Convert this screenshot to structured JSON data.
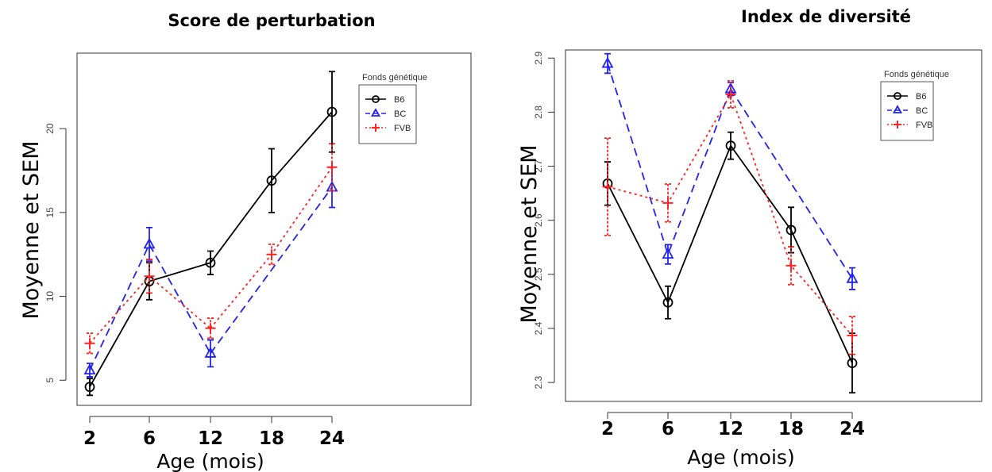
{
  "chart_data": [
    {
      "type": "line",
      "title": "Score de perturbation",
      "xlabel": "Age (mois)",
      "ylabel": "Moyenne et SEM",
      "x": [
        2,
        6,
        12,
        18,
        24
      ],
      "x_tick_labels": [
        "2",
        "6",
        "12",
        "18",
        "24"
      ],
      "y_ticks": [
        5,
        10,
        15,
        20
      ],
      "ylim": [
        3.5,
        24.5
      ],
      "grid": false,
      "legend": {
        "title": "Fonds génétique",
        "placement": "top-right"
      },
      "series": [
        {
          "name": "B6",
          "color": "#000000",
          "marker": "circle",
          "dash": "solid",
          "values": [
            4.6,
            10.9,
            12.0,
            16.9,
            21.0
          ],
          "sem": [
            0.5,
            1.1,
            0.7,
            1.9,
            2.4
          ],
          "segments": [
            [
              0,
              2
            ],
            [
              2,
              4
            ]
          ]
        },
        {
          "name": "BC",
          "color": "#2222ee",
          "marker": "triangle",
          "dash": "dashed",
          "values": [
            5.6,
            13.1,
            6.6,
            null,
            16.5
          ],
          "sem": [
            0.4,
            1.0,
            0.8,
            null,
            1.2
          ],
          "segments": [
            [
              0,
              2
            ],
            [
              2,
              4
            ]
          ]
        },
        {
          "name": "FVB",
          "color": "#ff2222",
          "marker": "plus",
          "dash": "dotted",
          "values": [
            7.2,
            11.2,
            8.1,
            12.5,
            17.7
          ],
          "sem": [
            0.6,
            1.0,
            0.6,
            0.6,
            1.4
          ],
          "segments": [
            [
              0,
              2
            ],
            [
              2,
              4
            ]
          ]
        }
      ]
    },
    {
      "type": "line",
      "title": "Index de diversité",
      "xlabel": "Age (mois)",
      "ylabel": "Moyenne et SEM",
      "x": [
        2,
        6,
        12,
        18,
        24
      ],
      "x_tick_labels": [
        "2",
        "6",
        "12",
        "18",
        "24"
      ],
      "y_ticks": [
        2.3,
        2.4,
        2.5,
        2.6,
        2.7,
        2.8,
        2.9
      ],
      "ylim": [
        2.265,
        2.915
      ],
      "grid": false,
      "legend": {
        "title": "Fonds génétique",
        "placement": "top-right"
      },
      "series": [
        {
          "name": "B6",
          "color": "#000000",
          "marker": "circle",
          "dash": "solid",
          "values": [
            2.668,
            2.448,
            2.738,
            2.582,
            2.336
          ],
          "sem": [
            0.04,
            0.03,
            0.025,
            0.042,
            0.055
          ],
          "segments": [
            [
              0,
              4
            ]
          ]
        },
        {
          "name": "BC",
          "color": "#2222ee",
          "marker": "triangle",
          "dash": "dashed",
          "values": [
            2.89,
            2.537,
            2.843,
            null,
            2.492
          ],
          "sem": [
            0.018,
            0.018,
            0.012,
            null,
            0.02
          ],
          "segments": [
            [
              0,
              2
            ],
            [
              2,
              4
            ]
          ]
        },
        {
          "name": "FVB",
          "color": "#ff2222",
          "marker": "plus",
          "dash": "dotted",
          "values": [
            2.662,
            2.632,
            2.833,
            2.516,
            2.387
          ],
          "sem": [
            0.09,
            0.035,
            0.025,
            0.035,
            0.035
          ],
          "segments": [
            [
              0,
              4
            ]
          ]
        }
      ]
    }
  ]
}
